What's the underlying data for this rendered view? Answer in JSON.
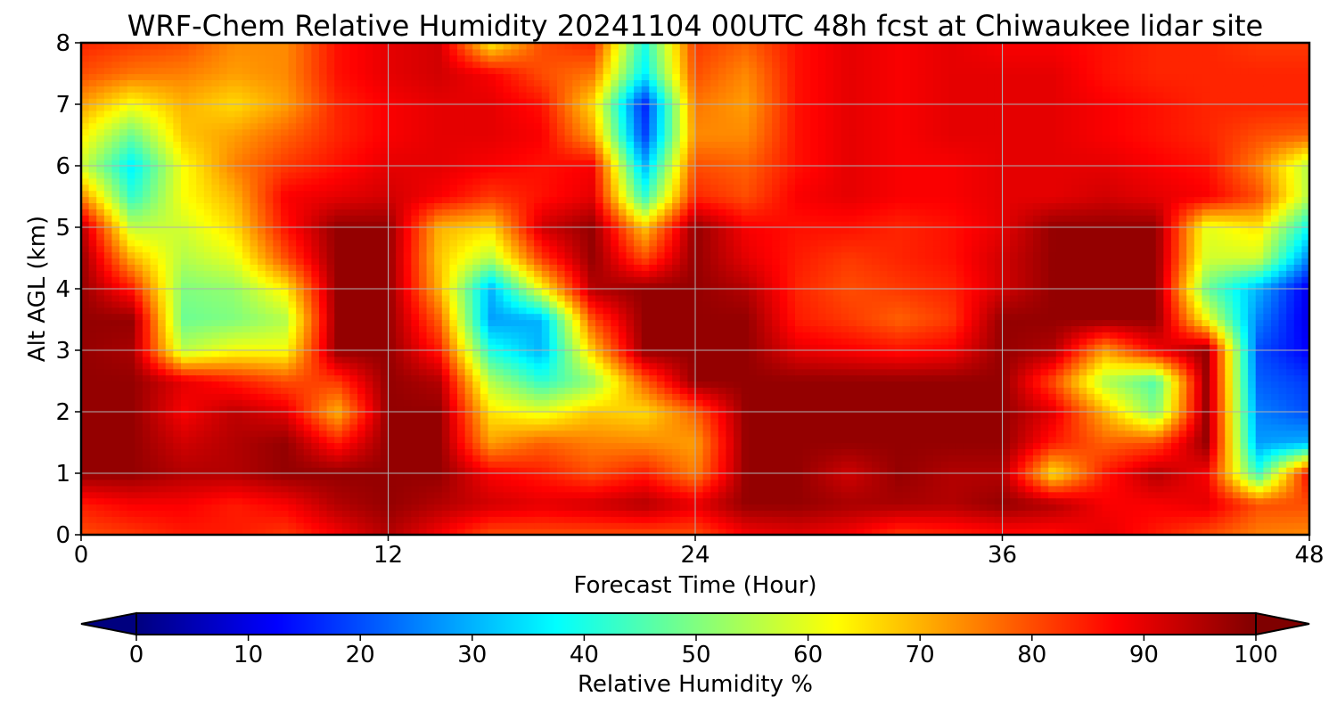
{
  "chart_data": {
    "type": "heatmap",
    "title": "WRF-Chem Relative Humidity 20241104 00UTC 48h fcst at Chiwaukee lidar site",
    "xlabel": "Forecast Time (Hour)",
    "ylabel": "Alt AGL (km)",
    "xlim": [
      0,
      48
    ],
    "ylim": [
      0,
      8
    ],
    "xticks": [
      0,
      12,
      24,
      36,
      48
    ],
    "yticks": [
      0,
      1,
      2,
      3,
      4,
      5,
      6,
      7,
      8
    ],
    "grid": true,
    "colorbar": {
      "label": "Relative Humidity %",
      "range": [
        0,
        100
      ],
      "ticks": [
        0,
        10,
        20,
        30,
        40,
        50,
        60,
        70,
        80,
        90,
        100
      ],
      "colormap": "jet",
      "extend": "both"
    },
    "x": [
      0,
      2,
      4,
      6,
      8,
      10,
      12,
      14,
      16,
      18,
      20,
      22,
      24,
      26,
      28,
      30,
      32,
      34,
      36,
      38,
      40,
      42,
      44,
      46,
      48
    ],
    "y": [
      0,
      0.5,
      1,
      1.5,
      2,
      2.5,
      3,
      3.5,
      4,
      4.5,
      5,
      5.5,
      6,
      6.5,
      7,
      7.5,
      8
    ],
    "z": [
      [
        80,
        82,
        85,
        85,
        82,
        88,
        95,
        88,
        80,
        80,
        80,
        80,
        80,
        88,
        90,
        88,
        82,
        84,
        86,
        86,
        90,
        85,
        80,
        75,
        74
      ],
      [
        85,
        88,
        88,
        85,
        88,
        95,
        98,
        95,
        92,
        90,
        92,
        95,
        90,
        98,
        98,
        96,
        96,
        95,
        98,
        95,
        88,
        88,
        90,
        80,
        80
      ],
      [
        98,
        98,
        95,
        95,
        98,
        98,
        98,
        98,
        88,
        85,
        80,
        85,
        75,
        98,
        98,
        92,
        98,
        95,
        95,
        65,
        85,
        95,
        88,
        42,
        88
      ],
      [
        98,
        98,
        92,
        95,
        98,
        85,
        98,
        98,
        72,
        78,
        75,
        74,
        72,
        98,
        98,
        98,
        98,
        98,
        98,
        85,
        78,
        80,
        98,
        28,
        30
      ],
      [
        98,
        98,
        88,
        94,
        90,
        70,
        98,
        98,
        65,
        60,
        68,
        66,
        78,
        98,
        98,
        98,
        98,
        98,
        98,
        90,
        70,
        50,
        98,
        25,
        20
      ],
      [
        98,
        98,
        90,
        85,
        80,
        82,
        98,
        95,
        55,
        42,
        52,
        78,
        98,
        98,
        98,
        98,
        98,
        98,
        98,
        80,
        55,
        45,
        98,
        22,
        18
      ],
      [
        98,
        96,
        56,
        62,
        62,
        98,
        98,
        85,
        40,
        30,
        68,
        98,
        98,
        98,
        90,
        88,
        86,
        88,
        98,
        95,
        72,
        88,
        98,
        20,
        12
      ],
      [
        98,
        98,
        48,
        50,
        55,
        98,
        98,
        78,
        28,
        30,
        80,
        98,
        98,
        98,
        85,
        82,
        78,
        82,
        98,
        98,
        98,
        98,
        62,
        25,
        10
      ],
      [
        98,
        85,
        50,
        52,
        64,
        98,
        98,
        70,
        30,
        62,
        95,
        98,
        98,
        95,
        84,
        80,
        82,
        84,
        92,
        98,
        98,
        98,
        48,
        30,
        10
      ],
      [
        98,
        70,
        55,
        60,
        80,
        98,
        98,
        68,
        55,
        82,
        98,
        80,
        98,
        90,
        85,
        82,
        84,
        86,
        92,
        98,
        98,
        98,
        58,
        58,
        25
      ],
      [
        95,
        56,
        58,
        66,
        86,
        98,
        98,
        70,
        66,
        92,
        98,
        68,
        98,
        88,
        86,
        86,
        84,
        86,
        90,
        98,
        98,
        98,
        60,
        65,
        38
      ],
      [
        75,
        42,
        62,
        70,
        88,
        90,
        92,
        88,
        82,
        86,
        90,
        42,
        84,
        80,
        88,
        90,
        88,
        88,
        90,
        90,
        92,
        90,
        88,
        80,
        55
      ],
      [
        58,
        36,
        62,
        75,
        82,
        86,
        90,
        90,
        88,
        86,
        88,
        30,
        80,
        78,
        86,
        90,
        88,
        88,
        90,
        90,
        90,
        88,
        86,
        75,
        55
      ],
      [
        64,
        48,
        68,
        72,
        78,
        84,
        88,
        90,
        90,
        88,
        72,
        18,
        74,
        74,
        86,
        90,
        88,
        90,
        90,
        90,
        88,
        86,
        84,
        80,
        78
      ],
      [
        72,
        62,
        70,
        66,
        72,
        84,
        88,
        90,
        90,
        86,
        66,
        15,
        76,
        72,
        86,
        90,
        88,
        90,
        90,
        90,
        88,
        86,
        84,
        84,
        84
      ],
      [
        80,
        76,
        75,
        72,
        74,
        86,
        90,
        92,
        88,
        80,
        76,
        36,
        80,
        74,
        86,
        90,
        88,
        90,
        90,
        90,
        86,
        84,
        84,
        84,
        84
      ],
      [
        84,
        82,
        80,
        74,
        74,
        86,
        90,
        92,
        64,
        80,
        84,
        40,
        82,
        78,
        86,
        90,
        88,
        90,
        88,
        88,
        86,
        84,
        84,
        82,
        82
      ]
    ]
  }
}
